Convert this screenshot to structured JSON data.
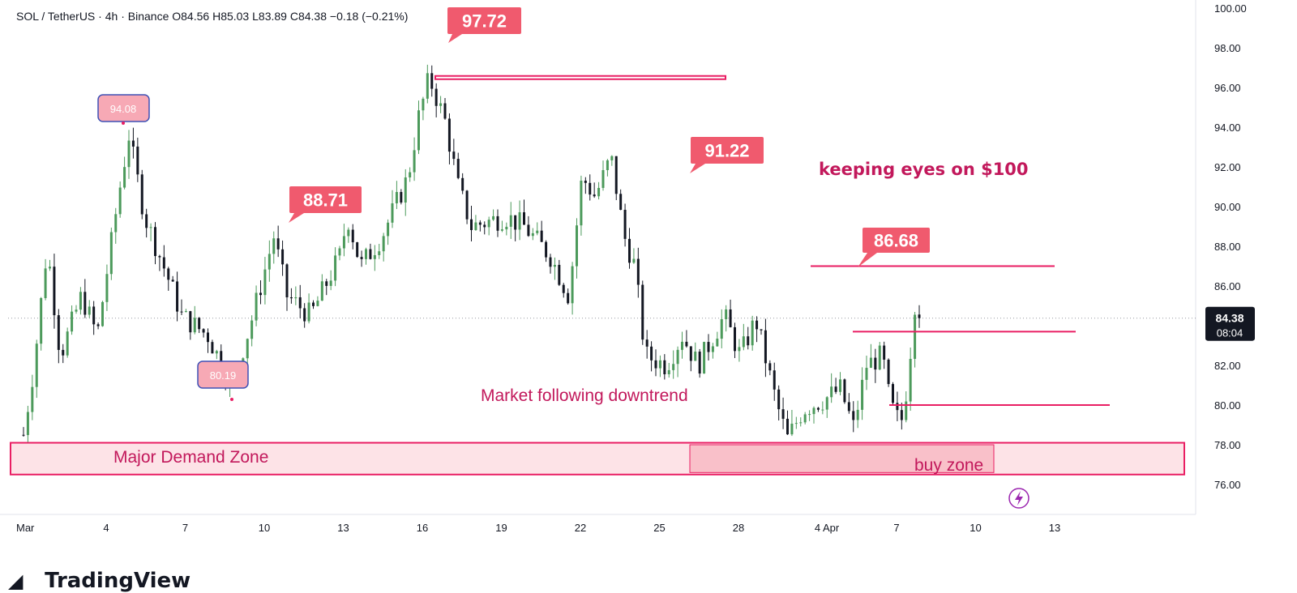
{
  "header": {
    "symbol": "SOL / TetherUS",
    "interval": "4h",
    "exchange": "Binance",
    "open": "O84.56",
    "high": "H85.03",
    "low": "L83.89",
    "close": "C84.38",
    "change": "−0.18 (−0.21%)"
  },
  "brand": {
    "name": "TradingView",
    "logo": "tradingview-logo-icon"
  },
  "colors": {
    "bull": "#4c9a5b",
    "bear": "#131722",
    "annotation": "#e91e63",
    "label_bg": "#f05a6e"
  },
  "chart_data": {
    "type": "candlestick",
    "ylim": [
      75,
      100
    ],
    "y_ticks": [
      "76.00",
      "78.00",
      "80.00",
      "82.00",
      "84.00",
      "86.00",
      "88.00",
      "90.00",
      "92.00",
      "94.00",
      "96.00",
      "98.00",
      "100.00"
    ],
    "x_ticks": [
      "Mar",
      "4",
      "7",
      "10",
      "13",
      "16",
      "19",
      "22",
      "25",
      "28",
      "Apr",
      "4",
      "7",
      "10",
      "13"
    ],
    "price_label": "84.38",
    "countdown": "08:04",
    "anchors": [
      {
        "day": 0.0,
        "price": 78.5
      },
      {
        "day": 0.4,
        "price": 82.0
      },
      {
        "day": 0.9,
        "price": 88.0
      },
      {
        "day": 1.4,
        "price": 82.5
      },
      {
        "day": 2.2,
        "price": 85.5
      },
      {
        "day": 2.8,
        "price": 83.5
      },
      {
        "day": 3.6,
        "price": 90.5
      },
      {
        "day": 4.0,
        "price": 93.6
      },
      {
        "day": 4.6,
        "price": 89.5
      },
      {
        "day": 5.6,
        "price": 86.0
      },
      {
        "day": 6.0,
        "price": 84.5
      },
      {
        "day": 7.0,
        "price": 83.5
      },
      {
        "day": 7.9,
        "price": 81.0
      },
      {
        "day": 8.6,
        "price": 84.0
      },
      {
        "day": 9.5,
        "price": 88.5
      },
      {
        "day": 10.0,
        "price": 85.5
      },
      {
        "day": 10.9,
        "price": 84.5
      },
      {
        "day": 12.0,
        "price": 87.5
      },
      {
        "day": 12.3,
        "price": 89.5
      },
      {
        "day": 12.8,
        "price": 87.0
      },
      {
        "day": 13.6,
        "price": 88.5
      },
      {
        "day": 14.6,
        "price": 91.5
      },
      {
        "day": 15.0,
        "price": 94.5
      },
      {
        "day": 15.4,
        "price": 96.5
      },
      {
        "day": 16.0,
        "price": 94.3
      },
      {
        "day": 16.5,
        "price": 91.0
      },
      {
        "day": 17.0,
        "price": 89.0
      },
      {
        "day": 18.3,
        "price": 89.5
      },
      {
        "day": 19.0,
        "price": 89.0
      },
      {
        "day": 20.0,
        "price": 87.5
      },
      {
        "day": 20.7,
        "price": 85.5
      },
      {
        "day": 21.2,
        "price": 91.5
      },
      {
        "day": 21.7,
        "price": 90.5
      },
      {
        "day": 22.3,
        "price": 92.5
      },
      {
        "day": 22.8,
        "price": 88.5
      },
      {
        "day": 23.2,
        "price": 87.0
      },
      {
        "day": 23.6,
        "price": 82.5
      },
      {
        "day": 24.4,
        "price": 82.0
      },
      {
        "day": 25.0,
        "price": 83.5
      },
      {
        "day": 25.6,
        "price": 82.0
      },
      {
        "day": 26.6,
        "price": 84.5
      },
      {
        "day": 27.2,
        "price": 82.5
      },
      {
        "day": 27.8,
        "price": 84.3
      },
      {
        "day": 28.6,
        "price": 80.0
      },
      {
        "day": 29.0,
        "price": 78.3
      },
      {
        "day": 29.6,
        "price": 79.8
      },
      {
        "day": 30.4,
        "price": 80.3
      },
      {
        "day": 31.0,
        "price": 80.8
      },
      {
        "day": 31.5,
        "price": 78.9
      },
      {
        "day": 32.0,
        "price": 82.0
      },
      {
        "day": 32.6,
        "price": 82.5
      },
      {
        "day": 32.9,
        "price": 80.0
      },
      {
        "day": 33.3,
        "price": 79.0
      },
      {
        "day": 33.6,
        "price": 81.5
      },
      {
        "day": 33.8,
        "price": 85.3
      },
      {
        "day": 34.0,
        "price": 84.38
      }
    ],
    "annotations": {
      "labels": [
        "94.08",
        "80.19",
        "88.71",
        "97.72",
        "91.22",
        "86.68"
      ],
      "texts": [
        "keeping eyes on $100",
        "Market following downtrend",
        "Major Demand Zone",
        "buy zone"
      ],
      "levels": [
        96.5,
        87.0,
        83.7,
        80.0
      ]
    }
  }
}
